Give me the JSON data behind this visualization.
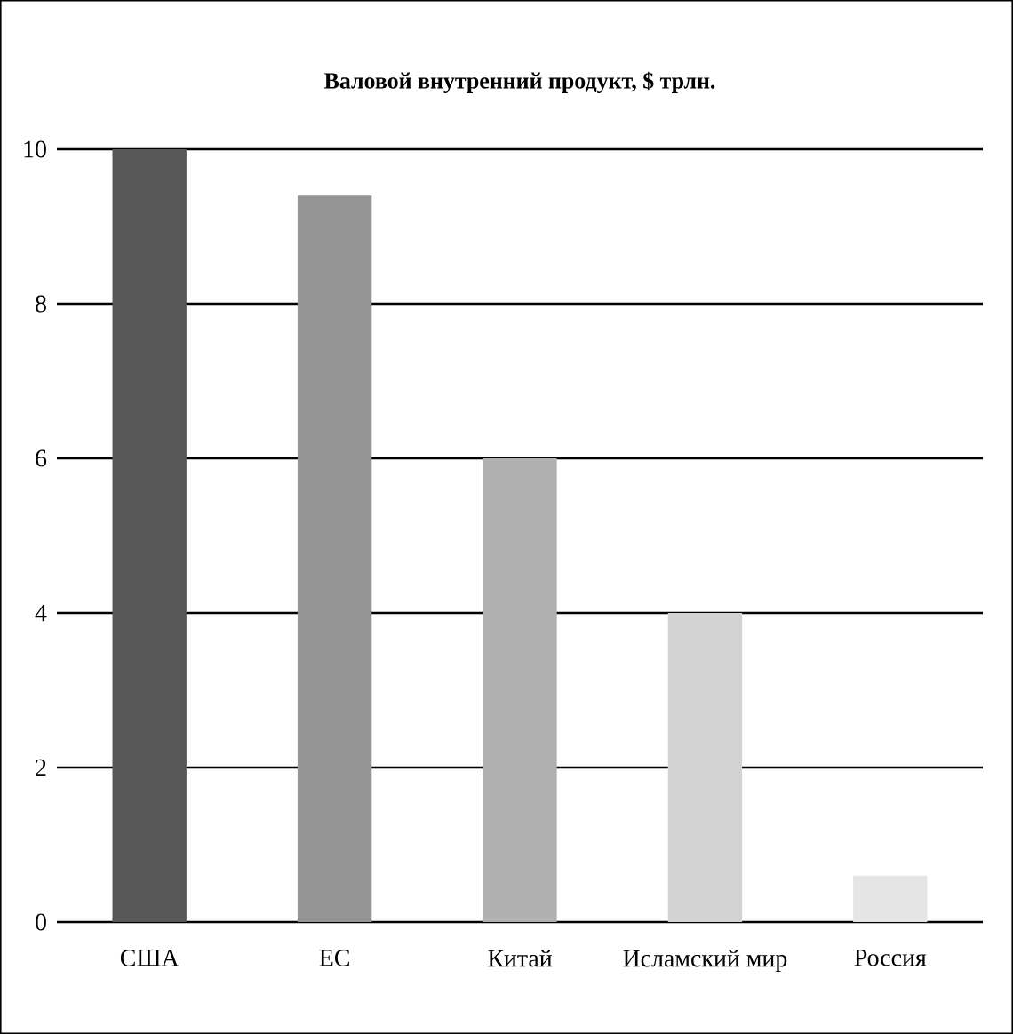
{
  "chart_data": {
    "type": "bar",
    "title": "Валовой внутренний продукт, $ трлн.",
    "categories": [
      "США",
      "ЕС",
      "Китай",
      "Исламский мир",
      "Россия"
    ],
    "values": [
      10,
      9.4,
      6,
      4,
      0.6
    ],
    "colors": [
      "#575757",
      "#959595",
      "#b0b0b0",
      "#d3d3d3",
      "#e5e5e5"
    ],
    "ylim": [
      0,
      10
    ],
    "yticks": [
      0,
      2,
      4,
      6,
      8,
      10
    ],
    "grid": "y"
  }
}
